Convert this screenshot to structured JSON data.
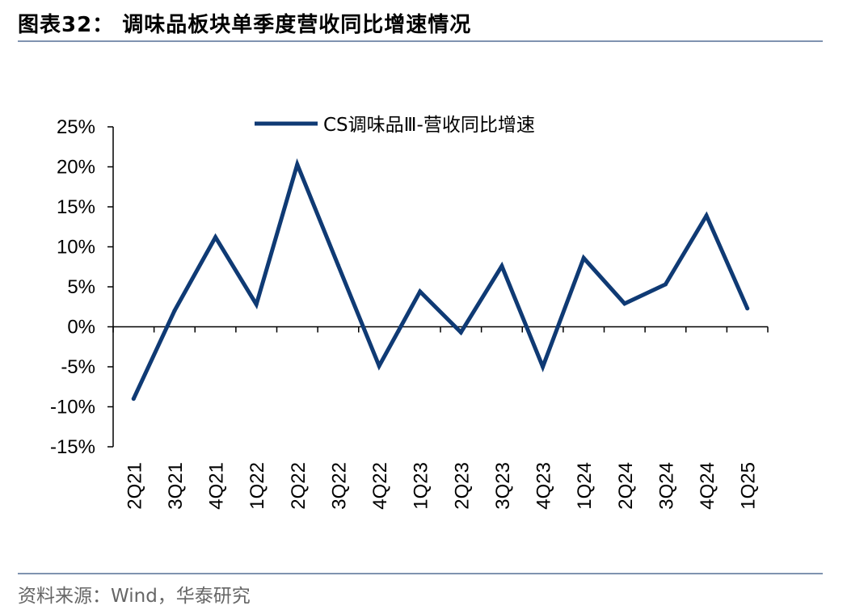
{
  "header": {
    "title": "图表32：  调味品板块单季度营收同比增速情况"
  },
  "footer": {
    "source": "资料来源：Wind，华泰研究"
  },
  "colors": {
    "series": "#0f3a74",
    "rule": "#7f93b0"
  },
  "chart_data": {
    "type": "line",
    "categories": [
      "2Q21",
      "3Q21",
      "4Q21",
      "1Q22",
      "2Q22",
      "3Q22",
      "4Q22",
      "1Q23",
      "2Q23",
      "3Q23",
      "4Q23",
      "1Q24",
      "2Q24",
      "3Q24",
      "4Q24",
      "1Q25"
    ],
    "series": [
      {
        "name": "CS调味品Ⅲ-营收同比增速",
        "values": [
          -9.0,
          2.0,
          11.2,
          2.8,
          20.3,
          7.7,
          -4.9,
          4.4,
          -0.7,
          7.6,
          -5.0,
          8.6,
          2.9,
          5.3,
          13.9,
          2.3
        ]
      }
    ],
    "yticks": [
      "-15%",
      "-10%",
      "-5%",
      "0%",
      "5%",
      "10%",
      "15%",
      "20%",
      "25%"
    ],
    "ylim": [
      -15,
      25
    ],
    "legend": "top-center",
    "grid": false,
    "title": "",
    "xlabel": "",
    "ylabel": ""
  }
}
